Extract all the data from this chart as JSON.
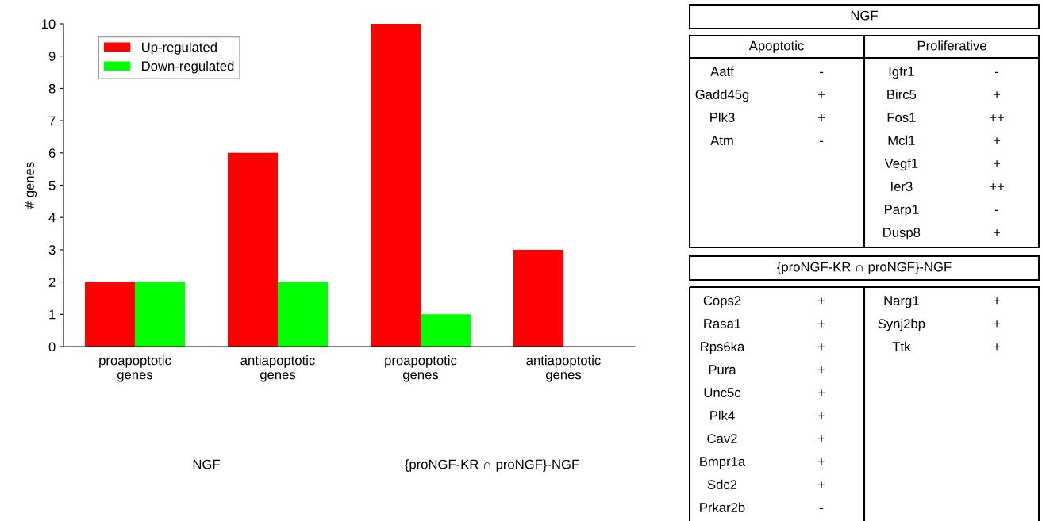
{
  "chart_data": [
    {
      "type": "bar",
      "ylabel": "# genes",
      "categories": [
        "proapoptotic\ngenes",
        "antiapoptotic\ngenes",
        "proapoptotic\ngenes",
        "antiapoptotic\ngenes"
      ],
      "series": [
        {
          "name": "Up-regulated",
          "color": "#ff0000",
          "values": [
            2,
            6,
            10,
            3
          ]
        },
        {
          "name": "Down-regulated",
          "color": "#00ff00",
          "values": [
            2,
            2,
            1,
            0
          ]
        }
      ],
      "ylim": [
        0,
        10
      ],
      "yticks": [
        0,
        1,
        2,
        3,
        4,
        5,
        6,
        7,
        8,
        9,
        10
      ],
      "grid": false,
      "legend": "top left",
      "annotations": [
        "NGF",
        "{proNGF-KR ∩ proNGF}-NGF"
      ]
    },
    {
      "type": "other",
      "title": "NGF",
      "categories": [
        "Apoptotic",
        "Proliferative"
      ],
      "cell_labels": [
        [
          "Aatf",
          "-",
          "Igfr1",
          "-"
        ],
        [
          "Gadd45g",
          "+",
          "Birc5",
          "+"
        ],
        [
          "Plk3",
          "+",
          "Fos1",
          "++"
        ],
        [
          "Atm",
          "-",
          "Mcl1",
          "+"
        ],
        [
          null,
          null,
          "Vegf1",
          "+"
        ],
        [
          null,
          null,
          "Ier3",
          "++"
        ],
        [
          null,
          null,
          "Parp1",
          "-"
        ],
        [
          null,
          null,
          "Dusp8",
          "+"
        ]
      ]
    },
    {
      "type": "other",
      "title": "{proNGF-KR ∩ proNGF}-NGF",
      "cell_labels": [
        [
          "Cops2",
          "+",
          "Narg1",
          "+"
        ],
        [
          "Rasa1",
          "+",
          "Synj2bp",
          "+"
        ],
        [
          "Rps6ka",
          "+",
          "Ttk",
          "+"
        ],
        [
          "Pura",
          "+",
          null,
          null
        ],
        [
          "Unc5c",
          "+",
          null,
          null
        ],
        [
          "Plk4",
          "+",
          null,
          null
        ],
        [
          "Cav2",
          "+",
          null,
          null
        ],
        [
          "Bmpr1a",
          "+",
          null,
          null
        ],
        [
          "Sdc2",
          "+",
          null,
          null
        ],
        [
          "Prkar2b",
          "-",
          null,
          null
        ]
      ]
    }
  ]
}
